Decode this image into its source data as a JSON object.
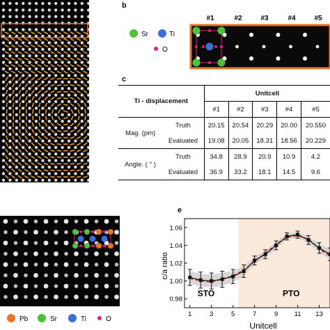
{
  "panel_labels": {
    "b": "b",
    "c": "c",
    "e": "e"
  },
  "legend_b": {
    "sr": {
      "label": "Sr",
      "color": "#4cc13a"
    },
    "ti": {
      "label": "Ti",
      "color": "#3c6fd6"
    },
    "o": {
      "label": "O",
      "color": "#e0207e"
    }
  },
  "strip_labels": [
    "#1",
    "#2",
    "#3",
    "#4",
    "#5"
  ],
  "highlight_color": "#e8742a",
  "arrow_color": "#f0a020",
  "table": {
    "col_header": "Unitcell",
    "row_header": "Ti - displacement",
    "cols": [
      "#1",
      "#2",
      "#3",
      "#4",
      "#5"
    ],
    "mag_label": "Mag. (pm)",
    "angle_label": "Angle. ( ° )",
    "truth_label": "Truth",
    "evaluated_label": "Evaluated",
    "mag_truth": [
      "20.15",
      "20.54",
      "20.29",
      "20.00",
      "20.550"
    ],
    "mag_eval": [
      "19.08",
      "20.05",
      "18.31",
      "18.56",
      "20.229"
    ],
    "angle_truth": [
      "34.8",
      "28.9",
      "20.9",
      "10.9",
      "4.2"
    ],
    "angle_eval": [
      "36.9",
      "33.2",
      "18.1",
      "14.5",
      "9.6"
    ]
  },
  "legend_d": {
    "pb": {
      "label": "Pb",
      "color": "#e8742a"
    },
    "sr": {
      "label": "Sr",
      "color": "#4cc13a"
    },
    "ti": {
      "label": "Ti",
      "color": "#3c6fd6"
    },
    "o": {
      "label": "O",
      "color": "#e0207e"
    }
  },
  "chart_data": {
    "type": "line",
    "ylabel": "c/a ratio",
    "xlabel": "Unitcell",
    "xlim": [
      0.5,
      14
    ],
    "ylim": [
      0.97,
      1.07
    ],
    "yticks": [
      "0.98",
      "1.00",
      "1.02",
      "1.04",
      "1.06"
    ],
    "xticks": [
      "1",
      "3",
      "5",
      "7",
      "9",
      "11",
      "13"
    ],
    "region_labels": [
      "STO",
      "PTO"
    ],
    "pto_start": 5.5,
    "shade_color": "#fbe9dc",
    "series": [
      {
        "color": "#111111",
        "x": [
          1,
          2,
          3,
          4,
          5,
          6,
          7,
          8,
          9,
          10,
          11,
          12,
          13,
          14
        ],
        "values": [
          1.004,
          1.001,
          1.0,
          1.002,
          1.005,
          1.011,
          1.023,
          1.03,
          1.04,
          1.05,
          1.052,
          1.046,
          1.037,
          1.03
        ],
        "err": [
          0.009,
          0.009,
          0.009,
          0.009,
          0.008,
          0.007,
          0.005,
          0.005,
          0.005,
          0.004,
          0.004,
          0.005,
          0.006,
          0.007
        ]
      },
      {
        "color": "#d41f1f",
        "x": [
          1,
          2,
          3,
          4,
          5,
          6,
          7,
          8,
          9,
          10,
          11,
          12,
          13,
          14
        ],
        "values": [
          1.003,
          1.0,
          0.999,
          1.002,
          1.006,
          1.012,
          1.022,
          1.031,
          1.041,
          1.049,
          1.051,
          1.047,
          1.036,
          1.028
        ]
      }
    ]
  }
}
